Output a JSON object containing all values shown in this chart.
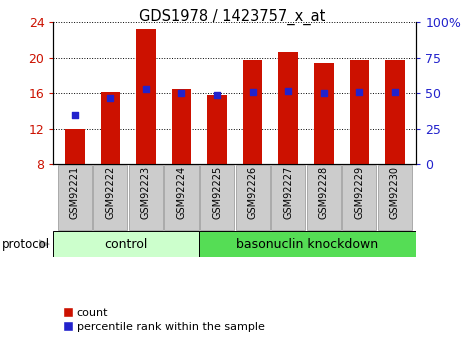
{
  "title": "GDS1978 / 1423757_x_at",
  "samples": [
    "GSM92221",
    "GSM92222",
    "GSM92223",
    "GSM92224",
    "GSM92225",
    "GSM92226",
    "GSM92227",
    "GSM92228",
    "GSM92229",
    "GSM92230"
  ],
  "count_values": [
    11.9,
    16.1,
    23.2,
    16.5,
    15.8,
    19.7,
    20.6,
    19.4,
    19.8,
    19.7
  ],
  "percentile_values": [
    13.5,
    15.5,
    16.5,
    16.0,
    15.8,
    16.1,
    16.2,
    16.0,
    16.1,
    16.1
  ],
  "bar_bottom": 8.0,
  "ylim_left": [
    8,
    24
  ],
  "ylim_right": [
    0,
    100
  ],
  "yticks_left": [
    8,
    12,
    16,
    20,
    24
  ],
  "yticks_right": [
    0,
    25,
    50,
    75,
    100
  ],
  "ytick_labels_right": [
    "0",
    "25",
    "50",
    "75",
    "100%"
  ],
  "bar_color": "#cc1100",
  "dot_color": "#2222cc",
  "control_group_count": 4,
  "knockdown_group_count": 6,
  "control_label": "control",
  "knockdown_label": "basonuclin knockdown",
  "protocol_label": "protocol",
  "legend_count": "count",
  "legend_percentile": "percentile rank within the sample",
  "control_color": "#ccffcc",
  "knockdown_color": "#55dd55",
  "tick_label_color_left": "#cc1100",
  "tick_label_color_right": "#2222cc",
  "cell_bg_color": "#cccccc",
  "cell_border_color": "#aaaaaa",
  "bar_width": 0.55
}
